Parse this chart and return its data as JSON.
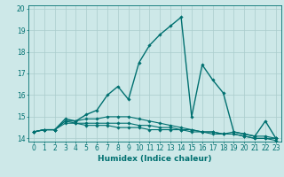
{
  "series": [
    {
      "x": [
        0,
        1,
        2,
        3,
        4,
        5,
        6,
        7,
        8,
        9,
        10,
        11,
        12,
        13,
        14,
        15,
        16,
        17,
        18,
        19,
        20,
        21,
        22,
        23
      ],
      "y": [
        14.3,
        14.4,
        14.4,
        14.9,
        14.8,
        15.1,
        15.3,
        16.0,
        16.4,
        15.8,
        17.5,
        18.3,
        18.8,
        19.2,
        19.6,
        15.0,
        17.4,
        16.7,
        16.1,
        14.3,
        14.2,
        14.1,
        14.8,
        14.0
      ],
      "color": "#007070",
      "lw": 1.0
    },
    {
      "x": [
        0,
        1,
        2,
        3,
        4,
        5,
        6,
        7,
        8,
        9,
        10,
        11,
        12,
        13,
        14,
        15,
        16,
        17,
        18,
        19,
        20,
        21,
        22,
        23
      ],
      "y": [
        14.3,
        14.4,
        14.4,
        14.8,
        14.8,
        14.9,
        14.9,
        15.0,
        15.0,
        15.0,
        14.9,
        14.8,
        14.7,
        14.6,
        14.5,
        14.4,
        14.3,
        14.2,
        14.2,
        14.3,
        14.2,
        14.1,
        14.1,
        14.0
      ],
      "color": "#007070",
      "lw": 0.8
    },
    {
      "x": [
        0,
        1,
        2,
        3,
        4,
        5,
        6,
        7,
        8,
        9,
        10,
        11,
        12,
        13,
        14,
        15,
        16,
        17,
        18,
        19,
        20,
        21,
        22,
        23
      ],
      "y": [
        14.3,
        14.4,
        14.4,
        14.8,
        14.7,
        14.7,
        14.7,
        14.7,
        14.7,
        14.7,
        14.6,
        14.6,
        14.5,
        14.5,
        14.4,
        14.4,
        14.3,
        14.3,
        14.2,
        14.2,
        14.1,
        14.0,
        14.0,
        14.0
      ],
      "color": "#007070",
      "lw": 0.8
    },
    {
      "x": [
        0,
        1,
        2,
        3,
        4,
        5,
        6,
        7,
        8,
        9,
        10,
        11,
        12,
        13,
        14,
        15,
        16,
        17,
        18,
        19,
        20,
        21,
        22,
        23
      ],
      "y": [
        14.3,
        14.4,
        14.4,
        14.7,
        14.7,
        14.6,
        14.6,
        14.6,
        14.5,
        14.5,
        14.5,
        14.4,
        14.4,
        14.4,
        14.4,
        14.3,
        14.3,
        14.3,
        14.2,
        14.2,
        14.1,
        14.0,
        14.0,
        13.9
      ],
      "color": "#007070",
      "lw": 0.8
    }
  ],
  "marker": "D",
  "markersize": 1.8,
  "xlim": [
    -0.5,
    23.5
  ],
  "ylim": [
    13.85,
    20.15
  ],
  "yticks": [
    14,
    15,
    16,
    17,
    18,
    19,
    20
  ],
  "xticks": [
    0,
    1,
    2,
    3,
    4,
    5,
    6,
    7,
    8,
    9,
    10,
    11,
    12,
    13,
    14,
    15,
    16,
    17,
    18,
    19,
    20,
    21,
    22,
    23
  ],
  "xlabel": "Humidex (Indice chaleur)",
  "bg_color": "#cde8e8",
  "grid_color": "#aacccc",
  "line_color": "#007070",
  "tick_fontsize": 5.5,
  "axis_fontsize": 6.5
}
